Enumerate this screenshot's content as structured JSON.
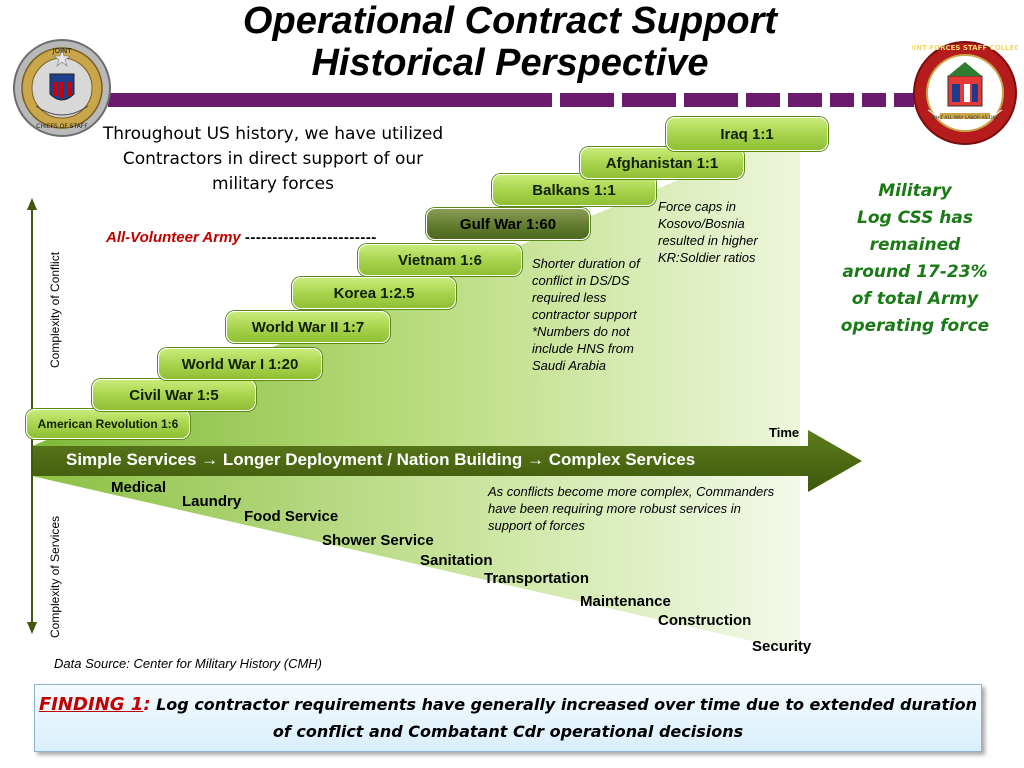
{
  "slide": {
    "title_line1": "Operational Contract Support",
    "title_line2": "Historical Perspective",
    "intro": "Throughout US history, we have utilized Contractors in direct support of our military forces",
    "all_volunteer_label": "All-Volunteer Army",
    "all_volunteer_dashes": "------------------------",
    "axis_up_label": "Complexity of Conflict",
    "axis_down_label": "Complexity of Services",
    "time_label": "Time",
    "arrow_text": "Simple Services → Longer Deployment / Nation Building → Complex Services",
    "source": "Data Source: Center for Military History (CMH)"
  },
  "conflicts": [
    {
      "label": "American Revolution 1:6"
    },
    {
      "label": "Civil War 1:5"
    },
    {
      "label": "World War I  1:20"
    },
    {
      "label": "World War II  1:7"
    },
    {
      "label": "Korea  1:2.5"
    },
    {
      "label": "Vietnam  1:6"
    },
    {
      "label": "Gulf War 1:60"
    },
    {
      "label": "Balkans 1:1"
    },
    {
      "label": "Afghanistan 1:1"
    },
    {
      "label": "Iraq 1:1"
    }
  ],
  "notes": {
    "balkans": "Force caps in Kosovo/Bosnia resulted in higher KR:Soldier ratios",
    "gulf": "Shorter duration of conflict in DS/DS required less contractor support *Numbers do not include HNS from Saudi Arabia",
    "services": "As conflicts become more complex, Commanders have been requiring more robust services in support of forces"
  },
  "services": [
    "Medical",
    "Laundry",
    "Food Service",
    "Shower Service",
    "Sanitation",
    "Transportation",
    "Maintenance",
    "Construction",
    "Security"
  ],
  "right_note": [
    "Military",
    "Log CSS has",
    "remained",
    "around 17-23%",
    "of total Army",
    "operating force"
  ],
  "finding": {
    "label": "FINDING 1",
    "colon": ":",
    "text": " Log contractor requirements have generally increased over time due to extended duration of conflict and Combatant Cdr operational decisions"
  },
  "logos": {
    "left": {
      "top_text": "JOINT",
      "bottom_text": "CHIEFS OF STAFF"
    },
    "right": {
      "ring_text": "JOINT FORCES STAFF COLLEGE",
      "motto": "THAT ALL MAY LABOR AS ONE"
    }
  },
  "colors": {
    "purple": "#6a1b6e",
    "green_arrow": "#4e6b14",
    "red": "#c00000",
    "green_text": "#1a7a16"
  }
}
